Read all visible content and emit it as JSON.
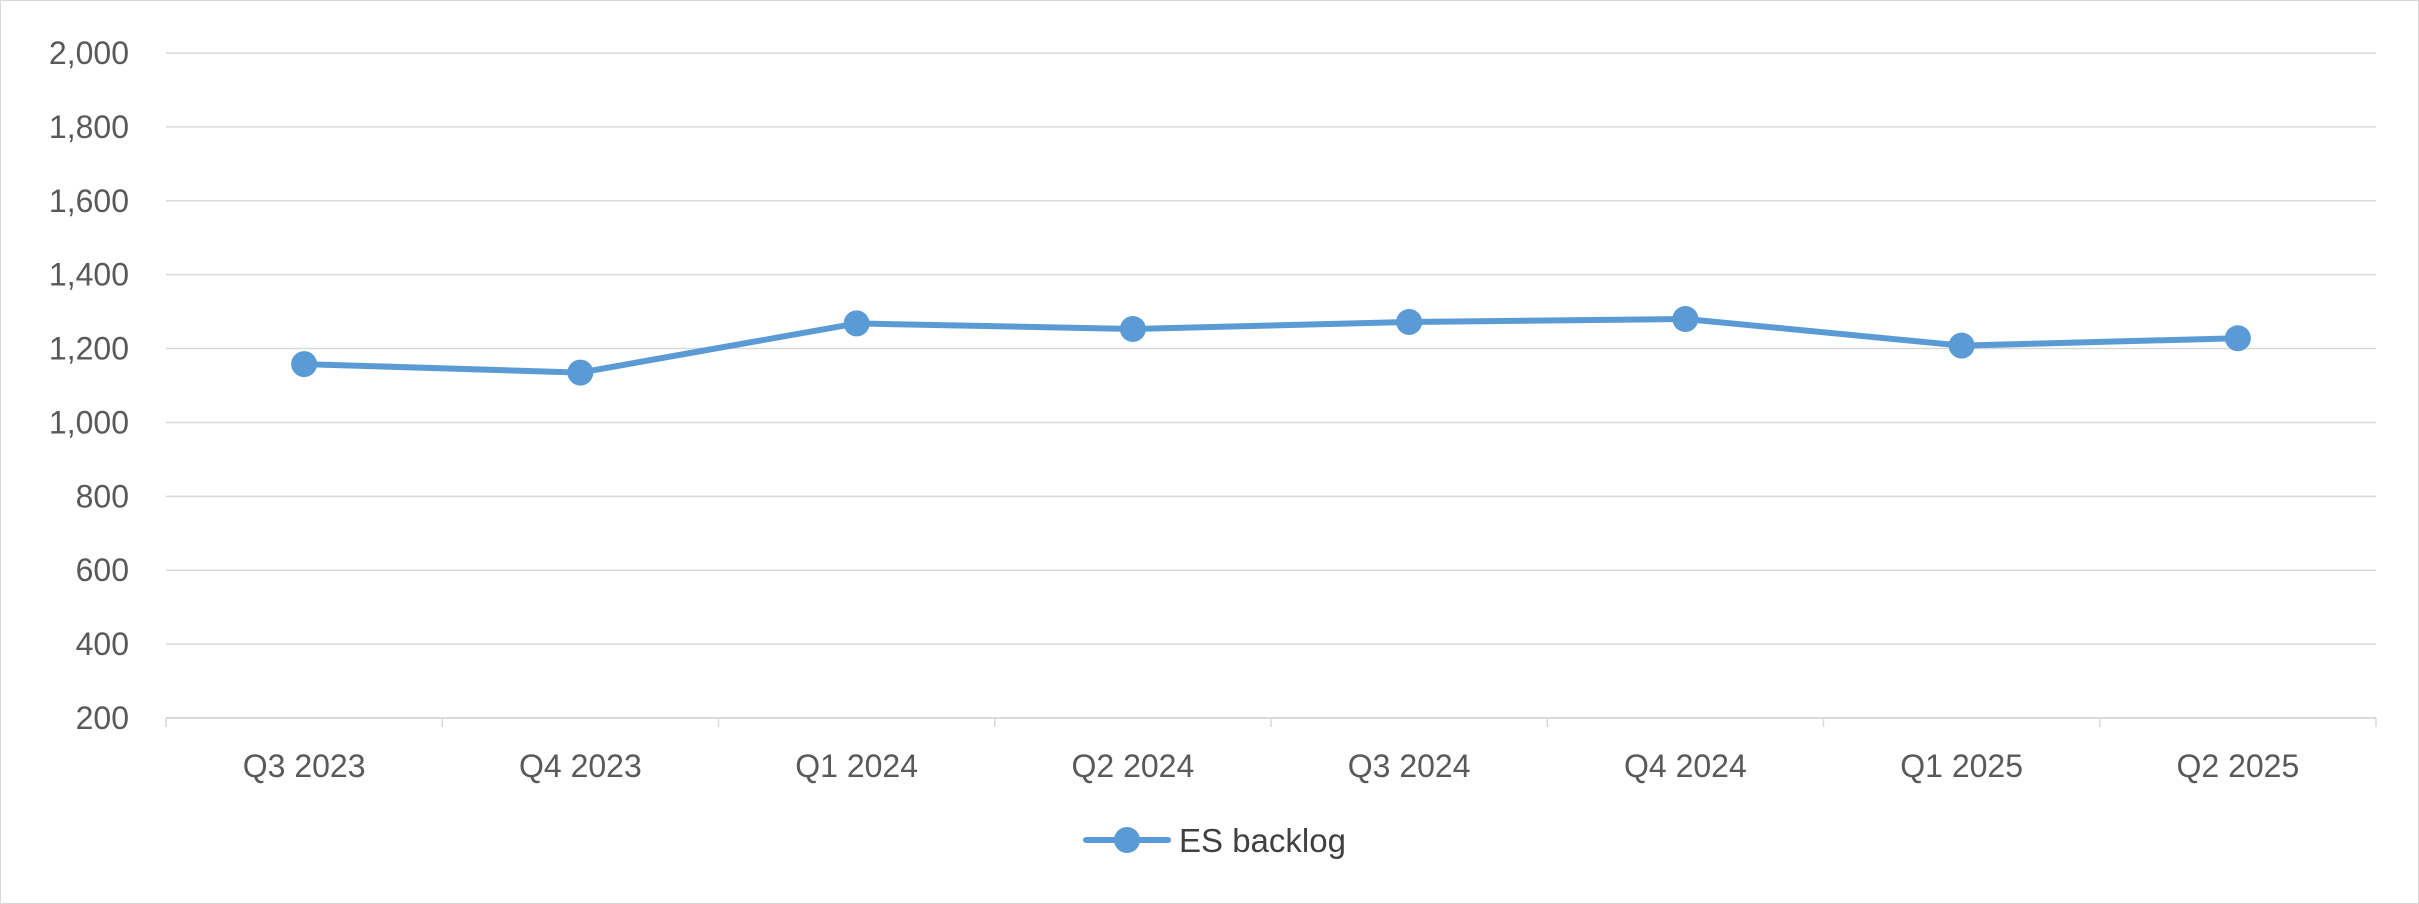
{
  "chart_data": {
    "type": "line",
    "title": "",
    "xlabel": "",
    "ylabel": "",
    "categories": [
      "Q3 2023",
      "Q4 2023",
      "Q1 2024",
      "Q2 2024",
      "Q3 2024",
      "Q4 2024",
      "Q1 2025",
      "Q2 2025"
    ],
    "series": [
      {
        "name": "ES backlog",
        "values": [
          1158,
          1135,
          1268,
          1253,
          1272,
          1280,
          1208,
          1228
        ],
        "color": "#5b9bd5",
        "marker": "circle"
      }
    ],
    "ylim": [
      200,
      2000
    ],
    "yticks": [
      200,
      400,
      600,
      800,
      1000,
      1200,
      1400,
      1600,
      1800,
      2000
    ],
    "ytick_labels": [
      "200",
      "400",
      "600",
      "800",
      "1,000",
      "1,200",
      "1,400",
      "1,600",
      "1,800",
      "2,000"
    ],
    "grid": "horizontal",
    "grid_color": "#d9d9d9",
    "legend": "bottom-center"
  }
}
